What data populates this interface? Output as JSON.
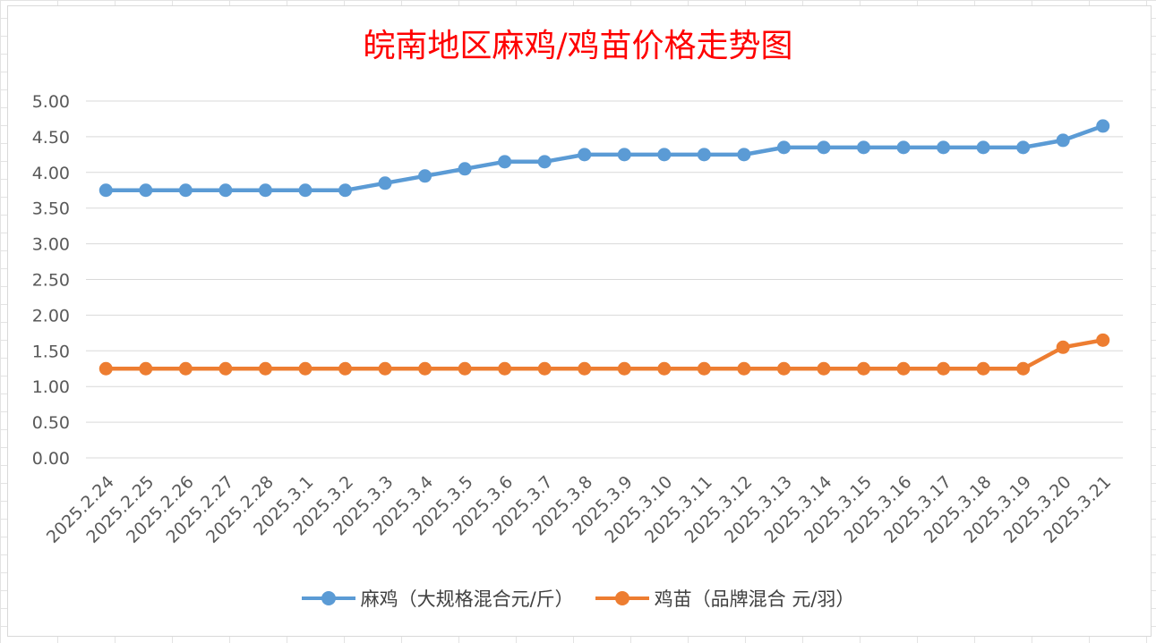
{
  "chart_data": {
    "type": "line",
    "title": "皖南地区麻鸡/鸡苗价格走势图",
    "categories": [
      "2025.2.24",
      "2025.2.25",
      "2025.2.26",
      "2025.2.27",
      "2025.2.28",
      "2025.3.1",
      "2025.3.2",
      "2025.3.3",
      "2025.3.4",
      "2025.3.5",
      "2025.3.6",
      "2025.3.7",
      "2025.3.8",
      "2025.3.9",
      "2025.3.10",
      "2025.3.11",
      "2025.3.12",
      "2025.3.13",
      "2025.3.14",
      "2025.3.15",
      "2025.3.16",
      "2025.3.17",
      "2025.3.18",
      "2025.3.19",
      "2025.3.20",
      "2025.3.21"
    ],
    "series": [
      {
        "name": "麻鸡（大规格混合元/斤）",
        "color": "#5b9bd5",
        "values": [
          3.75,
          3.75,
          3.75,
          3.75,
          3.75,
          3.75,
          3.75,
          3.85,
          3.95,
          4.05,
          4.15,
          4.15,
          4.25,
          4.25,
          4.25,
          4.25,
          4.25,
          4.35,
          4.35,
          4.35,
          4.35,
          4.35,
          4.35,
          4.35,
          4.45,
          4.65
        ]
      },
      {
        "name": "鸡苗（品牌混合 元/羽）",
        "color": "#ed7d31",
        "values": [
          1.25,
          1.25,
          1.25,
          1.25,
          1.25,
          1.25,
          1.25,
          1.25,
          1.25,
          1.25,
          1.25,
          1.25,
          1.25,
          1.25,
          1.25,
          1.25,
          1.25,
          1.25,
          1.25,
          1.25,
          1.25,
          1.25,
          1.25,
          1.25,
          1.55,
          1.65
        ]
      }
    ],
    "ylim": [
      0,
      5
    ],
    "ytick_step": 0.5,
    "ytick_decimals": 2,
    "grid": true,
    "legend_position": "bottom"
  }
}
